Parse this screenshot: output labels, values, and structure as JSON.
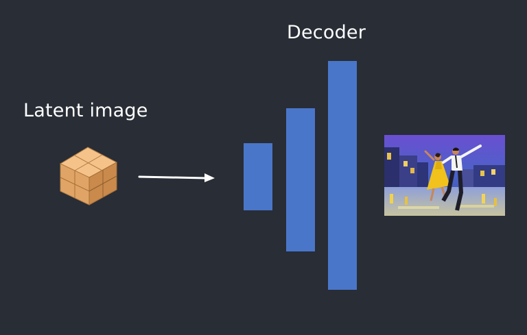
{
  "diagram": {
    "latent_label": "Latent image",
    "decoder_label": "Decoder",
    "colors": {
      "background": "#282d36",
      "decoder_bar": "#4a76c9",
      "cube_top": "#f5c38a",
      "cube_left": "#e0a566",
      "cube_right": "#c98a4c",
      "arrow": "#ffffff"
    },
    "icons": {
      "latent": "latent-cube-icon",
      "arrow": "arrow-right-icon",
      "output": "decoded-painting-image"
    }
  }
}
